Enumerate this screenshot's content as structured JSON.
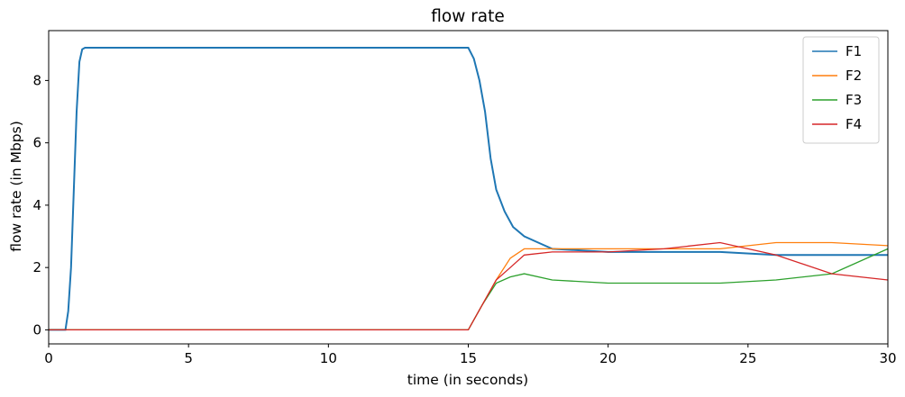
{
  "chart_data": {
    "type": "line",
    "title": "flow rate",
    "xlabel": "time (in seconds)",
    "ylabel": "flow rate (in Mbps)",
    "xlim": [
      0,
      30
    ],
    "ylim": [
      -0.45,
      9.6
    ],
    "xticks": [
      0,
      5,
      10,
      15,
      20,
      25,
      30
    ],
    "yticks": [
      0,
      2,
      4,
      6,
      8
    ],
    "grid": false,
    "legend_position": "top-right",
    "series": [
      {
        "name": "F1",
        "color": "#1f77b4",
        "x": [
          0,
          0.6,
          0.7,
          0.8,
          0.9,
          1.0,
          1.1,
          1.2,
          1.3,
          1.5,
          2.0,
          5.0,
          10.0,
          14.0,
          15.0,
          15.2,
          15.4,
          15.6,
          15.8,
          16.0,
          16.3,
          16.6,
          17.0,
          17.5,
          18.0,
          20.0,
          22.0,
          24.0,
          26.0,
          28.0,
          30.0
        ],
        "y": [
          0,
          0,
          0.6,
          2.0,
          4.5,
          7.0,
          8.6,
          9.0,
          9.05,
          9.05,
          9.05,
          9.05,
          9.05,
          9.05,
          9.05,
          8.7,
          8.0,
          7.0,
          5.5,
          4.5,
          3.8,
          3.3,
          3.0,
          2.8,
          2.6,
          2.5,
          2.5,
          2.5,
          2.4,
          2.4,
          2.4
        ]
      },
      {
        "name": "F2",
        "color": "#ff7f0e",
        "x": [
          0,
          15.0,
          15.5,
          16.0,
          16.5,
          17.0,
          18.0,
          20.0,
          22.0,
          24.0,
          26.0,
          28.0,
          30.0
        ],
        "y": [
          0,
          0,
          0.8,
          1.6,
          2.3,
          2.6,
          2.6,
          2.6,
          2.6,
          2.6,
          2.8,
          2.8,
          2.7
        ]
      },
      {
        "name": "F3",
        "color": "#2ca02c",
        "x": [
          0,
          15.0,
          15.5,
          16.0,
          16.5,
          17.0,
          18.0,
          20.0,
          22.0,
          24.0,
          26.0,
          28.0,
          30.0
        ],
        "y": [
          0,
          0,
          0.8,
          1.5,
          1.7,
          1.8,
          1.6,
          1.5,
          1.5,
          1.5,
          1.6,
          1.8,
          2.6
        ]
      },
      {
        "name": "F4",
        "color": "#d62728",
        "x": [
          0,
          15.0,
          15.5,
          16.0,
          16.5,
          17.0,
          18.0,
          20.0,
          22.0,
          24.0,
          26.0,
          28.0,
          30.0
        ],
        "y": [
          0,
          0,
          0.8,
          1.6,
          2.0,
          2.4,
          2.5,
          2.5,
          2.6,
          2.8,
          2.4,
          1.8,
          1.6
        ]
      }
    ]
  }
}
